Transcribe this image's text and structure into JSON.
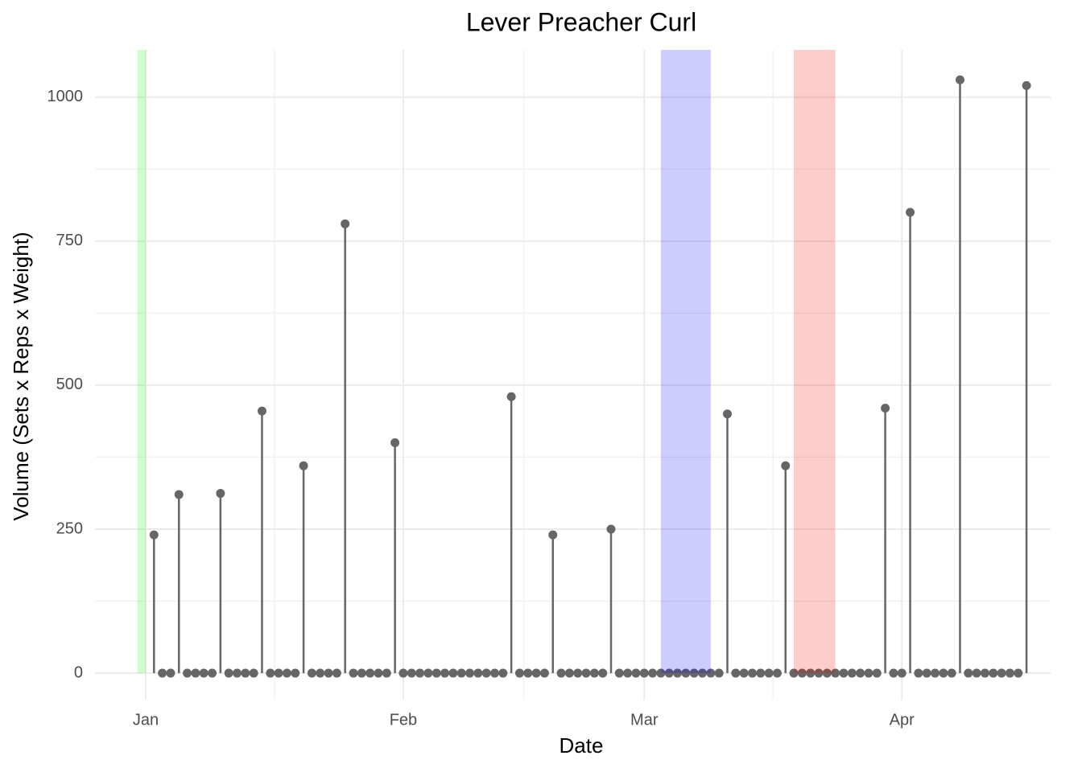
{
  "chart_data": {
    "type": "lollipop",
    "title": "Lever Preacher Curl",
    "xlabel": "Date",
    "ylabel": "Volume (Sets x Reps x Weight)",
    "x": [
      1,
      2,
      3,
      4,
      5,
      6,
      7,
      8,
      9,
      10,
      11,
      12,
      13,
      14,
      15,
      16,
      17,
      18,
      19,
      20,
      21,
      22,
      23,
      24,
      25,
      26,
      27,
      28,
      29,
      30,
      31,
      32,
      33,
      34,
      35,
      36,
      37,
      38,
      39,
      40,
      41,
      42,
      43,
      44,
      45,
      46,
      47,
      48,
      49,
      50,
      51,
      52,
      53,
      54,
      55,
      56,
      57,
      58,
      59,
      60,
      61,
      62,
      63,
      64,
      65,
      66,
      67,
      68,
      69,
      70,
      71,
      72,
      73,
      74,
      75,
      76,
      77,
      78,
      79,
      80,
      81,
      82,
      83,
      84,
      85,
      86,
      87,
      88,
      89,
      90,
      91,
      92,
      93,
      94,
      95,
      96,
      97,
      98,
      99,
      100,
      101,
      102,
      103,
      104,
      105,
      106
    ],
    "values": [
      240,
      0,
      0,
      310,
      0,
      0,
      0,
      0,
      312,
      0,
      0,
      0,
      0,
      455,
      0,
      0,
      0,
      0,
      360,
      0,
      0,
      0,
      0,
      780,
      0,
      0,
      0,
      0,
      0,
      400,
      0,
      0,
      0,
      0,
      0,
      0,
      0,
      0,
      0,
      0,
      0,
      0,
      0,
      480,
      0,
      0,
      0,
      0,
      240,
      0,
      0,
      0,
      0,
      0,
      0,
      250,
      0,
      0,
      0,
      0,
      0,
      0,
      0,
      0,
      0,
      0,
      0,
      0,
      0,
      450,
      0,
      0,
      0,
      0,
      0,
      0,
      360,
      0,
      0,
      0,
      0,
      0,
      0,
      0,
      0,
      0,
      0,
      0,
      460,
      0,
      0,
      800,
      0,
      0,
      0,
      0,
      0,
      1030,
      0,
      0,
      0,
      0,
      0,
      0,
      0,
      1020
    ],
    "color": "#666666",
    "bands": [
      {
        "start": -1,
        "end": 0,
        "color": "#00ff00"
      },
      {
        "start": 62,
        "end": 68,
        "color": "#0000ff"
      },
      {
        "start": 78,
        "end": 83,
        "color": "#ff0000"
      }
    ],
    "band_opacity": 0.2,
    "xlim": [
      -6.1,
      108.9
    ],
    "xticks": [
      {
        "value": 0,
        "label": "Jan"
      },
      {
        "value": 31,
        "label": "Feb"
      },
      {
        "value": 60,
        "label": "Mar"
      },
      {
        "value": 91,
        "label": "Apr"
      }
    ],
    "ylim": [
      -46,
      1082
    ],
    "yticks": [
      0,
      250,
      500,
      750,
      1000
    ],
    "grid": true
  }
}
